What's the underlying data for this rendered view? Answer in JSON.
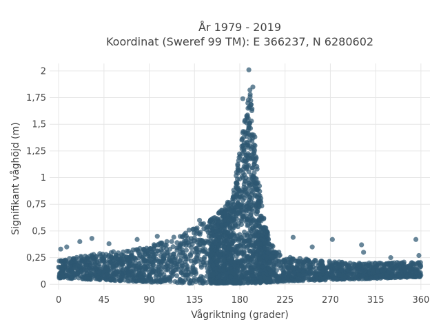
{
  "chart_data": {
    "type": "scatter",
    "title_lines": [
      "År 1979 - 2019",
      "Koordinat (Sweref 99 TM): E 366237, N 6280602"
    ],
    "xlabel": "Vågriktning (grader)",
    "ylabel": "Signifikant våghöjd (m)",
    "xlim": [
      -9,
      369
    ],
    "ylim": [
      -0.05,
      2.07
    ],
    "x_ticks": [
      0,
      45,
      90,
      135,
      180,
      225,
      270,
      315,
      360
    ],
    "x_tick_labels": [
      "0",
      "45",
      "90",
      "135",
      "180",
      "225",
      "270",
      "315",
      "360"
    ],
    "y_ticks": [
      0,
      0.25,
      0.5,
      0.75,
      1,
      1.25,
      1.5,
      1.75,
      2
    ],
    "y_tick_labels": [
      "0",
      "0,25",
      "0,5",
      "0,75",
      "1",
      "1,25",
      "1,5",
      "1,75",
      "2"
    ],
    "grid": true,
    "marker_color": "#2e5871",
    "envelope": [
      {
        "x": 0,
        "ymin": 0.06,
        "ymax": 0.22
      },
      {
        "x": 20,
        "ymin": 0.05,
        "ymax": 0.26
      },
      {
        "x": 45,
        "ymin": 0.04,
        "ymax": 0.3
      },
      {
        "x": 70,
        "ymin": 0.03,
        "ymax": 0.32
      },
      {
        "x": 90,
        "ymin": 0.02,
        "ymax": 0.36
      },
      {
        "x": 110,
        "ymin": 0.02,
        "ymax": 0.42
      },
      {
        "x": 130,
        "ymin": 0.01,
        "ymax": 0.52
      },
      {
        "x": 150,
        "ymin": 0.01,
        "ymax": 0.6
      },
      {
        "x": 165,
        "ymin": 0.01,
        "ymax": 0.72
      },
      {
        "x": 175,
        "ymin": 0.01,
        "ymax": 0.95
      },
      {
        "x": 185,
        "ymin": 0.01,
        "ymax": 1.55
      },
      {
        "x": 190,
        "ymin": 0.01,
        "ymax": 1.88
      },
      {
        "x": 195,
        "ymin": 0.01,
        "ymax": 1.4
      },
      {
        "x": 200,
        "ymin": 0.01,
        "ymax": 0.88
      },
      {
        "x": 205,
        "ymin": 0.02,
        "ymax": 0.55
      },
      {
        "x": 215,
        "ymin": 0.02,
        "ymax": 0.32
      },
      {
        "x": 230,
        "ymin": 0.03,
        "ymax": 0.26
      },
      {
        "x": 260,
        "ymin": 0.04,
        "ymax": 0.22
      },
      {
        "x": 300,
        "ymin": 0.05,
        "ymax": 0.2
      },
      {
        "x": 330,
        "ymin": 0.06,
        "ymax": 0.2
      },
      {
        "x": 360,
        "ymin": 0.07,
        "ymax": 0.22
      }
    ],
    "outliers": [
      {
        "x": 2,
        "y": 0.33
      },
      {
        "x": 8,
        "y": 0.35
      },
      {
        "x": 21,
        "y": 0.4
      },
      {
        "x": 33,
        "y": 0.43
      },
      {
        "x": 50,
        "y": 0.38
      },
      {
        "x": 78,
        "y": 0.42
      },
      {
        "x": 98,
        "y": 0.45
      },
      {
        "x": 140,
        "y": 0.6
      },
      {
        "x": 160,
        "y": 0.68
      },
      {
        "x": 183,
        "y": 1.74
      },
      {
        "x": 189,
        "y": 2.01
      },
      {
        "x": 193,
        "y": 1.85
      },
      {
        "x": 233,
        "y": 0.44
      },
      {
        "x": 252,
        "y": 0.35
      },
      {
        "x": 272,
        "y": 0.42
      },
      {
        "x": 301,
        "y": 0.37
      },
      {
        "x": 303,
        "y": 0.3
      },
      {
        "x": 330,
        "y": 0.25
      },
      {
        "x": 355,
        "y": 0.42
      },
      {
        "x": 358,
        "y": 0.27
      }
    ]
  }
}
